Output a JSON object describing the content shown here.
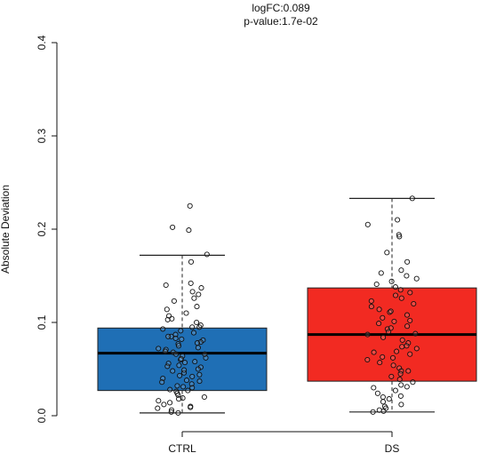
{
  "chart_data": {
    "type": "box",
    "title": "logFC:0.089",
    "subtitle": "p-value:1.7e-02",
    "ylabel": "Absolute Deviation",
    "xlabel": "",
    "ylim": [
      0,
      0.4
    ],
    "yticks": [
      "0.0",
      "0.1",
      "0.2",
      "0.3",
      "0.4"
    ],
    "categories": [
      "CTRL",
      "DS"
    ],
    "colors": [
      "#1f6fb5",
      "#f22a22"
    ],
    "boxes": [
      {
        "category": "CTRL",
        "whisker_low": 0.003,
        "q1": 0.027,
        "median": 0.067,
        "q3": 0.094,
        "whisker_high": 0.172
      },
      {
        "category": "DS",
        "whisker_low": 0.004,
        "q1": 0.037,
        "median": 0.087,
        "q3": 0.137,
        "whisker_high": 0.233
      }
    ],
    "points": [
      {
        "category": "CTRL",
        "values": [
          0.225,
          0.202,
          0.199,
          0.173,
          0.165,
          0.142,
          0.14,
          0.137,
          0.133,
          0.13,
          0.126,
          0.123,
          0.117,
          0.114,
          0.11,
          0.107,
          0.103,
          0.1,
          0.097,
          0.095,
          0.093,
          0.091,
          0.089,
          0.087,
          0.085,
          0.083,
          0.081,
          0.079,
          0.077,
          0.075,
          0.073,
          0.071,
          0.069,
          0.068,
          0.066,
          0.064,
          0.062,
          0.06,
          0.058,
          0.056,
          0.054,
          0.052,
          0.05,
          0.048,
          0.046,
          0.044,
          0.042,
          0.04,
          0.038,
          0.036,
          0.034,
          0.032,
          0.03,
          0.028,
          0.026,
          0.024,
          0.022,
          0.02,
          0.018,
          0.016,
          0.014,
          0.012,
          0.01,
          0.008,
          0.006,
          0.004,
          0.003,
          0.085,
          0.078,
          0.061,
          0.049,
          0.037,
          0.027,
          0.095,
          0.072,
          0.057,
          0.043,
          0.019,
          0.009,
          0.104,
          0.082,
          0.066,
          0.053,
          0.031
        ]
      },
      {
        "category": "DS",
        "values": [
          0.233,
          0.21,
          0.205,
          0.194,
          0.192,
          0.175,
          0.165,
          0.156,
          0.153,
          0.15,
          0.147,
          0.144,
          0.141,
          0.138,
          0.135,
          0.132,
          0.129,
          0.126,
          0.123,
          0.12,
          0.117,
          0.114,
          0.111,
          0.108,
          0.105,
          0.102,
          0.099,
          0.096,
          0.093,
          0.09,
          0.087,
          0.084,
          0.081,
          0.078,
          0.075,
          0.072,
          0.069,
          0.066,
          0.063,
          0.06,
          0.057,
          0.054,
          0.051,
          0.048,
          0.045,
          0.042,
          0.039,
          0.036,
          0.033,
          0.03,
          0.027,
          0.024,
          0.021,
          0.018,
          0.015,
          0.012,
          0.01,
          0.008,
          0.006,
          0.005,
          0.004,
          0.101,
          0.088,
          0.074,
          0.062,
          0.048,
          0.031,
          0.02,
          0.112,
          0.094,
          0.068
        ]
      }
    ]
  }
}
